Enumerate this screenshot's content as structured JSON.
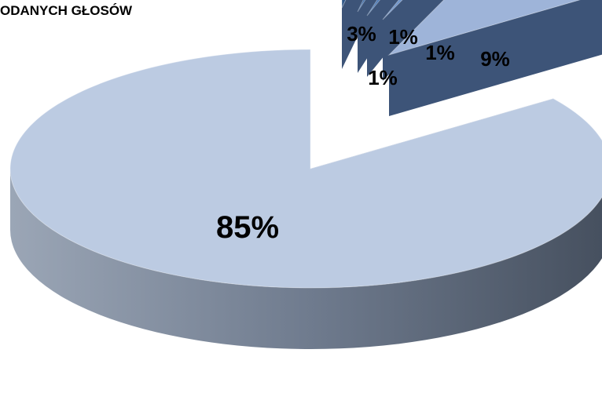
{
  "chart_data": {
    "type": "pie",
    "title": "ODANYCH GŁOSÓW",
    "slices": [
      {
        "label": "3%",
        "value": 3,
        "color": "#2f5687"
      },
      {
        "label": "1%",
        "value": 1,
        "color": "#3b6aa6"
      },
      {
        "label": "1%",
        "value": 1,
        "color": "#4a78b4"
      },
      {
        "label": "1%",
        "value": 1,
        "color": "#6d93c9"
      },
      {
        "label": "9%",
        "value": 9,
        "color": "#9eb4d9"
      },
      {
        "label": "85%",
        "value": 85,
        "color": "#bccbe2"
      }
    ],
    "legend": "none",
    "style": "3d-exploded"
  }
}
